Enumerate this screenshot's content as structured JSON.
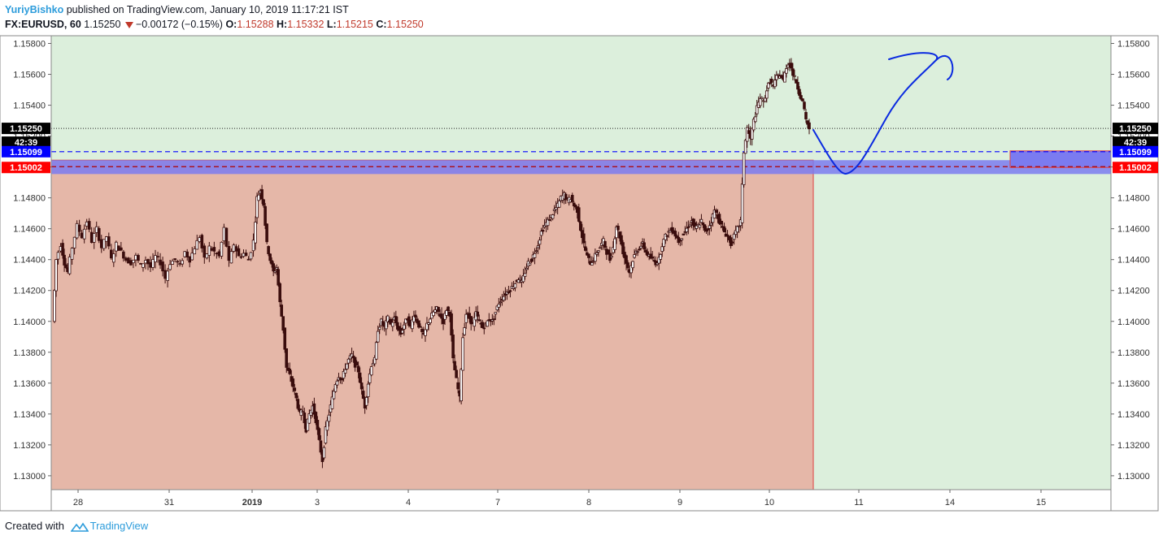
{
  "header": {
    "author": "YuriyBishko",
    "published_text": "published on TradingView.com, January 10, 2019 11:17:21 IST",
    "symbol": "FX:EURUSD, 60",
    "last": "1.15250",
    "change": "−0.00172 (−0.15%)",
    "o_label": "O:",
    "o_value": "1.15288",
    "h_label": "H:",
    "h_value": "1.15332",
    "l_label": "L:",
    "l_value": "1.15215",
    "c_label": "C:",
    "c_value": "1.15250"
  },
  "footer": {
    "created_with": "Created with",
    "brand": "TradingView"
  },
  "colors": {
    "background": "#dcefdc",
    "shaded_zone": "#e5b7a8",
    "zone_border": "#e04040",
    "blue_zone": "#7b7bf0",
    "candle": "#3a0d0d",
    "drawing": "#0a2ae0",
    "label_black": "#000000",
    "label_blue": "#0000ff",
    "label_red": "#ff0000"
  },
  "chart_data": {
    "type": "candlestick",
    "symbol": "FX:EURUSD",
    "interval": "60",
    "ylim": [
      1.1291,
      1.1585
    ],
    "y_ticks": [
      "1.15800",
      "1.15600",
      "1.15400",
      "1.15200",
      "1.15000",
      "1.14800",
      "1.14600",
      "1.14400",
      "1.14200",
      "1.14000",
      "1.13800",
      "1.13600",
      "1.13400",
      "1.13200",
      "1.13000"
    ],
    "x_ticks": [
      "28",
      "31",
      "2019",
      "3",
      "4",
      "7",
      "8",
      "9",
      "10",
      "11",
      "14",
      "15"
    ],
    "price_labels": [
      {
        "text": "1.15250",
        "value": 1.1525,
        "color": "label_black"
      },
      {
        "text": "42:39",
        "value": 1.1515,
        "color": "label_black"
      },
      {
        "text": "1.15099",
        "value": 1.15099,
        "color": "label_blue"
      },
      {
        "text": "1.15002",
        "value": 1.15002,
        "color": "label_red"
      }
    ],
    "levels": [
      {
        "value": 1.1525,
        "style": "dotted"
      },
      {
        "value": 1.15099,
        "style": "dashed-blue"
      },
      {
        "value": 1.15002,
        "style": "dashed-red"
      }
    ],
    "close_path": [
      [
        0,
        1.14
      ],
      [
        4,
        1.144
      ],
      [
        10,
        1.145
      ],
      [
        14,
        1.1438
      ],
      [
        18,
        1.1432
      ],
      [
        24,
        1.1448
      ],
      [
        30,
        1.1462
      ],
      [
        36,
        1.1455
      ],
      [
        42,
        1.1465
      ],
      [
        48,
        1.1452
      ],
      [
        54,
        1.146
      ],
      [
        60,
        1.1448
      ],
      [
        66,
        1.1455
      ],
      [
        72,
        1.144
      ],
      [
        78,
        1.145
      ],
      [
        84,
        1.1445
      ],
      [
        90,
        1.144
      ],
      [
        96,
        1.1438
      ],
      [
        102,
        1.1442
      ],
      [
        108,
        1.1436
      ],
      [
        114,
        1.144
      ],
      [
        120,
        1.1435
      ],
      [
        126,
        1.1442
      ],
      [
        132,
        1.1438
      ],
      [
        138,
        1.1428
      ],
      [
        144,
        1.1438
      ],
      [
        150,
        1.144
      ],
      [
        156,
        1.1436
      ],
      [
        162,
        1.1445
      ],
      [
        168,
        1.144
      ],
      [
        174,
        1.1448
      ],
      [
        180,
        1.1455
      ],
      [
        186,
        1.144
      ],
      [
        192,
        1.1448
      ],
      [
        198,
        1.1445
      ],
      [
        204,
        1.1442
      ],
      [
        210,
        1.146
      ],
      [
        216,
        1.1438
      ],
      [
        222,
        1.145
      ],
      [
        228,
        1.1442
      ],
      [
        234,
        1.1444
      ],
      [
        240,
        1.144
      ],
      [
        246,
        1.1452
      ],
      [
        250,
        1.148
      ],
      [
        254,
        1.1485
      ],
      [
        258,
        1.1476
      ],
      [
        262,
        1.145
      ],
      [
        266,
        1.144
      ],
      [
        270,
        1.1432
      ],
      [
        274,
        1.1435
      ],
      [
        278,
        1.1412
      ],
      [
        282,
        1.1395
      ],
      [
        286,
        1.137
      ],
      [
        290,
        1.1365
      ],
      [
        294,
        1.1358
      ],
      [
        298,
        1.135
      ],
      [
        302,
        1.134
      ],
      [
        306,
        1.1342
      ],
      [
        310,
        1.133
      ],
      [
        314,
        1.134
      ],
      [
        318,
        1.1345
      ],
      [
        322,
        1.1336
      ],
      [
        326,
        1.1322
      ],
      [
        330,
        1.131
      ],
      [
        334,
        1.133
      ],
      [
        338,
        1.134
      ],
      [
        342,
        1.135
      ],
      [
        346,
        1.136
      ],
      [
        350,
        1.1365
      ],
      [
        354,
        1.1362
      ],
      [
        358,
        1.137
      ],
      [
        362,
        1.1375
      ],
      [
        366,
        1.1378
      ],
      [
        370,
        1.1372
      ],
      [
        374,
        1.1368
      ],
      [
        378,
        1.1355
      ],
      [
        382,
        1.1345
      ],
      [
        386,
        1.136
      ],
      [
        390,
        1.1372
      ],
      [
        394,
        1.1375
      ],
      [
        398,
        1.1395
      ],
      [
        402,
        1.14
      ],
      [
        406,
        1.1396
      ],
      [
        410,
        1.1402
      ],
      [
        414,
        1.1398
      ],
      [
        418,
        1.1402
      ],
      [
        422,
        1.1396
      ],
      [
        426,
        1.1392
      ],
      [
        430,
        1.1398
      ],
      [
        434,
        1.1402
      ],
      [
        438,
        1.1396
      ],
      [
        442,
        1.1405
      ],
      [
        446,
        1.14
      ],
      [
        450,
        1.1395
      ],
      [
        454,
        1.139
      ],
      [
        458,
        1.1398
      ],
      [
        462,
        1.1402
      ],
      [
        466,
        1.1406
      ],
      [
        470,
        1.1408
      ],
      [
        474,
        1.1404
      ],
      [
        478,
        1.14
      ],
      [
        482,
        1.1408
      ],
      [
        486,
        1.1405
      ],
      [
        490,
        1.1375
      ],
      [
        494,
        1.1362
      ],
      [
        498,
        1.135
      ],
      [
        502,
        1.139
      ],
      [
        506,
        1.1405
      ],
      [
        510,
        1.1402
      ],
      [
        514,
        1.1398
      ],
      [
        518,
        1.1405
      ],
      [
        522,
        1.14
      ],
      [
        526,
        1.1396
      ],
      [
        530,
        1.1398
      ],
      [
        534,
        1.1402
      ],
      [
        538,
        1.14
      ],
      [
        542,
        1.1406
      ],
      [
        546,
        1.1412
      ],
      [
        550,
        1.1415
      ],
      [
        554,
        1.1418
      ],
      [
        558,
        1.142
      ],
      [
        562,
        1.1422
      ],
      [
        566,
        1.1425
      ],
      [
        570,
        1.1428
      ],
      [
        574,
        1.1425
      ],
      [
        578,
        1.1432
      ],
      [
        582,
        1.1438
      ],
      [
        586,
        1.144
      ],
      [
        590,
        1.1445
      ],
      [
        594,
        1.145
      ],
      [
        598,
        1.1458
      ],
      [
        602,
        1.1462
      ],
      [
        606,
        1.1465
      ],
      [
        610,
        1.1468
      ],
      [
        614,
        1.1472
      ],
      [
        618,
        1.1475
      ],
      [
        622,
        1.148
      ],
      [
        626,
        1.1482
      ],
      [
        630,
        1.1478
      ],
      [
        634,
        1.148
      ],
      [
        638,
        1.1475
      ],
      [
        642,
        1.1472
      ],
      [
        646,
        1.146
      ],
      [
        650,
        1.145
      ],
      [
        654,
        1.1442
      ],
      [
        658,
        1.1438
      ],
      [
        662,
        1.144
      ],
      [
        666,
        1.1445
      ],
      [
        670,
        1.1448
      ],
      [
        674,
        1.1452
      ],
      [
        678,
        1.1445
      ],
      [
        682,
        1.144
      ],
      [
        686,
        1.1448
      ],
      [
        690,
        1.1462
      ],
      [
        694,
        1.1455
      ],
      [
        698,
        1.1445
      ],
      [
        702,
        1.1438
      ],
      [
        706,
        1.1432
      ],
      [
        710,
        1.144
      ],
      [
        714,
        1.1445
      ],
      [
        718,
        1.1448
      ],
      [
        722,
        1.145
      ],
      [
        726,
        1.1445
      ],
      [
        730,
        1.1442
      ],
      [
        734,
        1.144
      ],
      [
        738,
        1.1438
      ],
      [
        742,
        1.144
      ],
      [
        746,
        1.145
      ],
      [
        750,
        1.1455
      ],
      [
        754,
        1.1458
      ],
      [
        758,
        1.146
      ],
      [
        762,
        1.1456
      ],
      [
        766,
        1.1452
      ],
      [
        770,
        1.1455
      ],
      [
        774,
        1.1458
      ],
      [
        778,
        1.1462
      ],
      [
        782,
        1.1465
      ],
      [
        786,
        1.146
      ],
      [
        790,
        1.1462
      ],
      [
        794,
        1.1465
      ],
      [
        798,
        1.1458
      ],
      [
        802,
        1.146
      ],
      [
        806,
        1.1465
      ],
      [
        810,
        1.1472
      ],
      [
        814,
        1.1468
      ],
      [
        818,
        1.1462
      ],
      [
        822,
        1.1458
      ],
      [
        826,
        1.1455
      ],
      [
        830,
        1.145
      ],
      [
        834,
        1.1455
      ],
      [
        838,
        1.146
      ],
      [
        842,
        1.1465
      ],
      [
        846,
        1.151
      ],
      [
        850,
        1.1525
      ],
      [
        854,
        1.1518
      ],
      [
        858,
        1.153
      ],
      [
        862,
        1.1538
      ],
      [
        866,
        1.1545
      ],
      [
        870,
        1.1542
      ],
      [
        874,
        1.155
      ],
      [
        878,
        1.1556
      ],
      [
        882,
        1.1552
      ],
      [
        886,
        1.1558
      ],
      [
        890,
        1.156
      ],
      [
        894,
        1.1556
      ],
      [
        898,
        1.1565
      ],
      [
        902,
        1.1568
      ],
      [
        906,
        1.156
      ],
      [
        910,
        1.1555
      ],
      [
        914,
        1.1548
      ],
      [
        918,
        1.1542
      ],
      [
        922,
        1.153
      ],
      [
        926,
        1.1525
      ]
    ]
  }
}
